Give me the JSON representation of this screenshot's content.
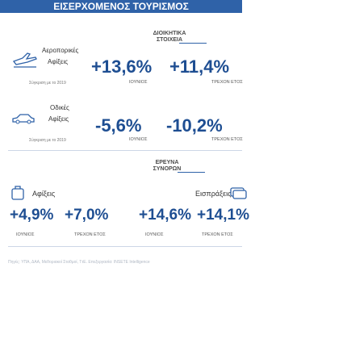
{
  "header": {
    "title": "ΕΙΣΕΡΧΟΜΕΝΟΣ ΤΟΥΡΙΣΜΟΣ"
  },
  "admin": {
    "title": [
      "ΔΙΟΙΚΗΤΙΚΑ",
      "ΣΤΟΙΧΕΙΑ"
    ],
    "air": {
      "label": [
        "Αεροπορικές",
        "Αφίξεις"
      ],
      "note": "Σύγκριση με το 2019",
      "june": "+13,6%",
      "june_label": "ΙΟΥΝΙΟΣ",
      "ytd": "+11,4%",
      "ytd_label": "ΤΡΕΧΟΝ ΕΤΟΣ"
    },
    "road": {
      "label": [
        "Οδικές",
        "Αφίξεις"
      ],
      "note": "Σύγκριση με το 2019",
      "june": "-5,6%",
      "june_label": "ΙΟΥΝΙΟΣ",
      "ytd": "-10,2%",
      "ytd_label": "ΤΡΕΧΟΝ ΕΤΟΣ"
    }
  },
  "survey": {
    "title": [
      "ΕΡΕΥΝΑ",
      "ΣΥΝΟΡΩΝ"
    ],
    "arrivals": {
      "label": "Αφίξεις",
      "june": "+4,9%",
      "june_label": "ΙΟΥΝΙΟΣ",
      "ytd": "+7,0%",
      "ytd_label": "ΤΡΕΧΟΝ ΕΤΟΣ"
    },
    "receipts": {
      "label": "Εισπράξεις",
      "june": "+14,6%",
      "june_label": "ΙΟΥΝΙΟΣ",
      "ytd": "+14,1%",
      "ytd_label": "ΤΡΕΧΟΝ ΕΤΟΣ"
    }
  },
  "footer": "Πηγές: ΥΠΑ, ΔΑΑ, Μεθοριακοί Σταθμοί, ΤτΕ. Επεξεργασία: INSETE Intelligence"
}
